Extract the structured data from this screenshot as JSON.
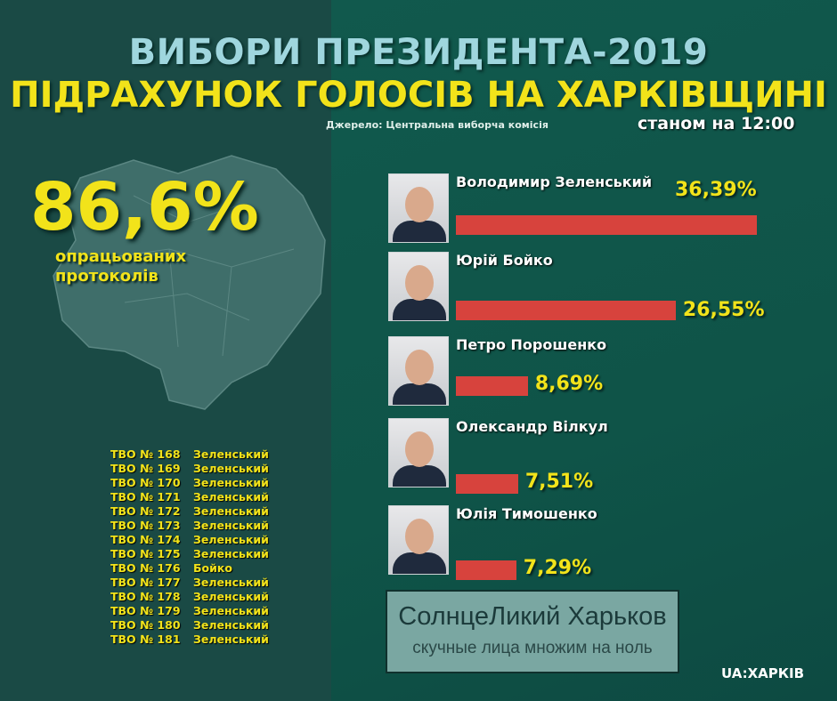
{
  "header": {
    "title_line1": "ВИБОРИ ПРЕЗИДЕНТА-2019",
    "title_line2": "ПІДРАХУНОК ГОЛОСІВ НА ХАРКІВЩИНІ",
    "source": "Джерело: Центральна виборча комісія",
    "as_of": "станом на 12:00"
  },
  "processed": {
    "value": "86,6%",
    "label_line1": "опрацьованих",
    "label_line2": "протоколів"
  },
  "districts": [
    {
      "n": "ТВО № 168",
      "w": "Зеленський"
    },
    {
      "n": "ТВО № 169",
      "w": "Зеленський"
    },
    {
      "n": "ТВО № 170",
      "w": "Зеленський"
    },
    {
      "n": "ТВО № 171",
      "w": "Зеленський"
    },
    {
      "n": "ТВО № 172",
      "w": "Зеленський"
    },
    {
      "n": "ТВО № 173",
      "w": "Зеленський"
    },
    {
      "n": "ТВО № 174",
      "w": "Зеленський"
    },
    {
      "n": "ТВО № 175",
      "w": "Зеленський"
    },
    {
      "n": "ТВО № 176",
      "w": "Бойко"
    },
    {
      "n": "ТВО № 177",
      "w": "Зеленський"
    },
    {
      "n": "ТВО № 178",
      "w": "Зеленський"
    },
    {
      "n": "ТВО № 179",
      "w": "Зеленський"
    },
    {
      "n": "ТВО № 180",
      "w": "Зеленський"
    },
    {
      "n": "ТВО № 181",
      "w": "Зеленський"
    }
  ],
  "chart_data": {
    "type": "bar",
    "orientation": "horizontal",
    "categories": [
      "Володимир Зеленський",
      "Юрій Бойко",
      "Петро Порошенко",
      "Олександр Вілкул",
      "Юлія Тимошенко"
    ],
    "values": [
      36.39,
      26.55,
      8.69,
      7.51,
      7.29
    ],
    "labels": [
      "36,39%",
      "26,55%",
      "8,69%",
      "7,51%",
      "7,29%"
    ],
    "bar_color": "#d7433d",
    "label_color": "#f2e31a"
  },
  "watermark": {
    "line1": "СолнцеЛикий Харьков",
    "line2": "скучные лица множим на ноль"
  },
  "logo": "UA:ХАРКІВ"
}
